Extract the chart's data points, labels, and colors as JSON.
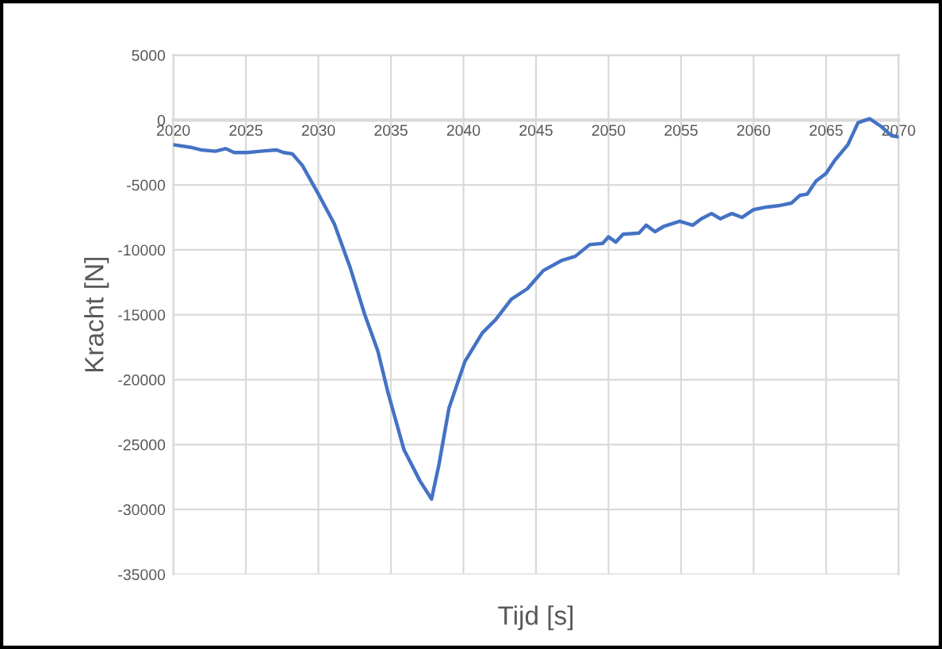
{
  "chart_data": {
    "type": "line",
    "xlabel": "Tijd [s]",
    "ylabel": "Kracht [N]",
    "xlim": [
      2020,
      2070
    ],
    "xticks": [
      2020,
      2025,
      2030,
      2035,
      2040,
      2045,
      2050,
      2055,
      2060,
      2065,
      2070
    ],
    "ylim": [
      -35000,
      5000
    ],
    "yticks": [
      -35000,
      -30000,
      -25000,
      -20000,
      -15000,
      -10000,
      -5000,
      0,
      5000
    ],
    "grid": true,
    "marker": "none",
    "line_style": "solid",
    "series": [
      {
        "color": "#4472c4",
        "x": [
          2020,
          2021.2,
          2021.9,
          2022.9,
          2023.6,
          2024.2,
          2025.1,
          2026,
          2027.1,
          2027.6,
          2028.2,
          2028.9,
          2030,
          2031.1,
          2032.2,
          2033.2,
          2034.1,
          2034.8,
          2035.9,
          2037,
          2037.8,
          2038.3,
          2039,
          2040.1,
          2041.3,
          2042.2,
          2043.3,
          2044.4,
          2045.5,
          2046.8,
          2047.7,
          2048.7,
          2049.6,
          2050,
          2050.5,
          2051,
          2052.1,
          2052.6,
          2053.2,
          2053.8,
          2054.9,
          2055.8,
          2056.4,
          2057.1,
          2057.7,
          2058.5,
          2059.2,
          2060,
          2060.9,
          2061.7,
          2062.6,
          2063.2,
          2063.7,
          2064.3,
          2065,
          2065.6,
          2066.5,
          2067.2,
          2068,
          2068.8,
          2069.5,
          2070
        ],
        "values": [
          -1900,
          -2100,
          -2300,
          -2400,
          -2200,
          -2500,
          -2500,
          -2400,
          -2300,
          -2500,
          -2600,
          -3500,
          -5700,
          -8000,
          -11400,
          -15000,
          -17800,
          -21000,
          -25400,
          -27800,
          -29200,
          -26600,
          -22200,
          -18600,
          -16400,
          -15400,
          -13800,
          -13000,
          -11600,
          -10800,
          -10500,
          -9600,
          -9500,
          -9000,
          -9400,
          -8800,
          -8700,
          -8100,
          -8600,
          -8200,
          -7800,
          -8100,
          -7600,
          -7200,
          -7600,
          -7200,
          -7500,
          -6900,
          -6700,
          -6600,
          -6400,
          -5800,
          -5700,
          -4700,
          -4100,
          -3100,
          -1900,
          -200,
          100,
          -500,
          -1200,
          -1300
        ]
      }
    ]
  }
}
